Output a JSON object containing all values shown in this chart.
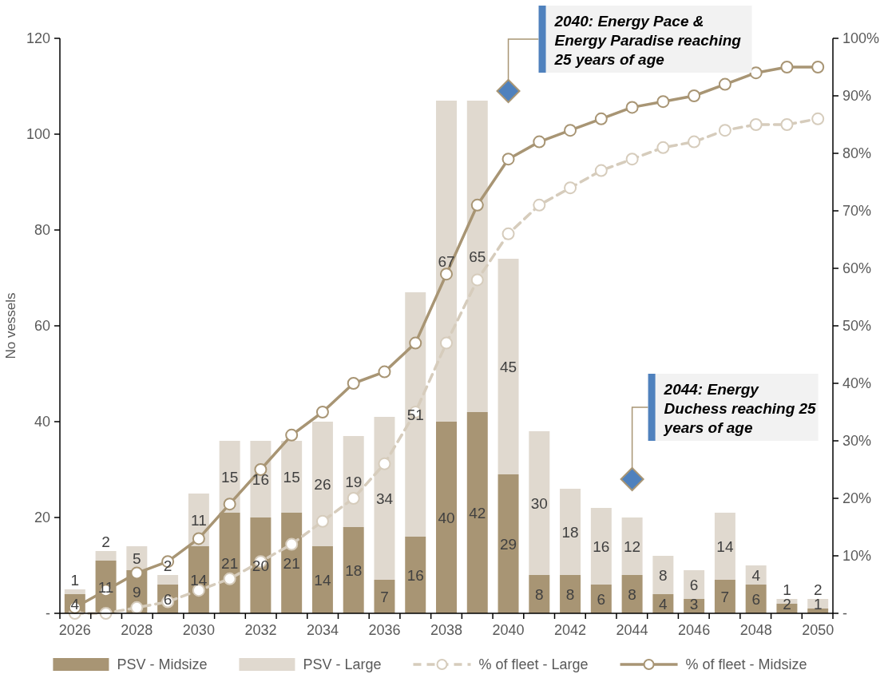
{
  "chart_data": {
    "type": "bar",
    "stacked": true,
    "ylabel": "No vessels",
    "categories": [
      "2026",
      null,
      "2028",
      null,
      "2030",
      null,
      "2032",
      null,
      "2034",
      null,
      "2036",
      null,
      "2038",
      null,
      "2040",
      null,
      "2042",
      null,
      "2044",
      null,
      "2046",
      null,
      "2048",
      null,
      "2050"
    ],
    "series": [
      {
        "name": "PSV - Midsize",
        "color": "#a89574",
        "values": [
          4,
          11,
          9,
          6,
          14,
          21,
          20,
          21,
          14,
          18,
          7,
          16,
          40,
          42,
          29,
          8,
          8,
          6,
          8,
          4,
          3,
          7,
          6,
          2,
          1
        ],
        "value_labels": [
          "4",
          "11",
          "9",
          "6",
          "14",
          "21",
          "20",
          "21",
          "14",
          "18",
          "7",
          "16",
          "40",
          "42",
          "29",
          "8",
          "8",
          "6",
          "8",
          "4",
          "3",
          "7",
          "6",
          "2",
          "1"
        ]
      },
      {
        "name": "PSV - Large",
        "color": "#e0d9cf",
        "values": [
          1,
          2,
          5,
          2,
          11,
          15,
          16,
          15,
          26,
          19,
          34,
          51,
          67,
          65,
          45,
          30,
          18,
          16,
          12,
          8,
          6,
          14,
          4,
          1,
          2
        ],
        "value_labels": [
          "1",
          "2",
          "5",
          "2",
          "11",
          "15",
          "16",
          "15",
          "26",
          "19",
          "34",
          "51",
          "67",
          "65",
          "45",
          "30",
          "18",
          "16",
          "12",
          "8",
          "6",
          "14",
          "4",
          "1",
          "2"
        ]
      },
      {
        "name": "% of fleet - Large",
        "type": "line",
        "axis": "y2",
        "line_style": "dashed",
        "marker": "circle",
        "color": "#d6ccbc",
        "values": [
          0,
          0,
          1,
          2,
          4,
          6,
          9,
          12,
          16,
          20,
          26,
          35,
          47,
          58,
          66,
          71,
          74,
          77,
          79,
          81,
          82,
          84,
          85,
          85,
          86
        ]
      },
      {
        "name": "% of fleet - Midsize",
        "type": "line",
        "axis": "y2",
        "line_style": "solid",
        "marker": "circle",
        "color": "#a89574",
        "values": [
          1,
          4,
          7,
          9,
          13,
          19,
          25,
          31,
          35,
          40,
          42,
          47,
          59,
          71,
          79,
          82,
          84,
          86,
          88,
          89,
          90,
          92,
          94,
          95,
          95
        ]
      }
    ],
    "ylim": [
      0,
      120
    ],
    "yticks": [
      {
        "value": 0,
        "label": "-"
      },
      20,
      40,
      60,
      80,
      100,
      120
    ],
    "y2lim": [
      0,
      100
    ],
    "y2ticks": [
      {
        "value": 0,
        "label": "-"
      },
      {
        "value": 10,
        "label": "10%"
      },
      {
        "value": 20,
        "label": "20%"
      },
      {
        "value": 30,
        "label": "30%"
      },
      {
        "value": 40,
        "label": "40%"
      },
      {
        "value": 50,
        "label": "50%"
      },
      {
        "value": 60,
        "label": "60%"
      },
      {
        "value": 70,
        "label": "70%"
      },
      {
        "value": 80,
        "label": "80%"
      },
      {
        "value": 90,
        "label": "90%"
      },
      {
        "value": 100,
        "label": "100%"
      }
    ],
    "grid": false,
    "legend": "bottom",
    "annotations": [
      {
        "text": "2040: Energy Pace & Energy Paradise reaching 25 years of age",
        "x": "2040",
        "y": 109
      },
      {
        "text": "2044: Energy Duchess reaching 25 years of age",
        "x": "2044",
        "y": 28
      }
    ]
  }
}
